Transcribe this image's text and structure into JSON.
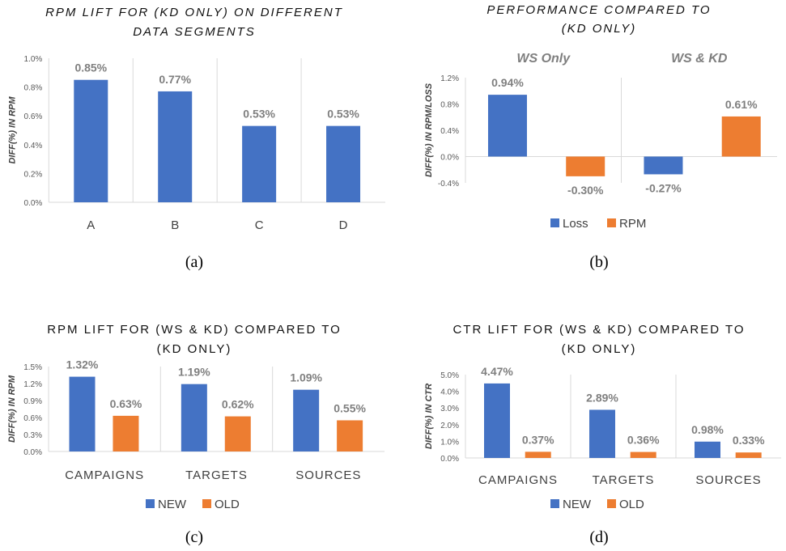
{
  "colors": {
    "blue": "#4472c4",
    "orange": "#ed7d31",
    "grid": "#d9d9d9"
  },
  "chart_data": [
    {
      "type": "bar",
      "caption": "(a)",
      "title": [
        "RPM LIFT FOR (KD ONLY) ON DIFFERENT",
        "DATA SEGMENTS"
      ],
      "ylabel": "DIFF(%) IN RPM",
      "categories": [
        "A",
        "B",
        "C",
        "D"
      ],
      "series": [
        {
          "values": [
            0.85,
            0.77,
            0.53,
            0.53
          ],
          "labels": [
            "0.85%",
            "0.77%",
            "0.53%",
            "0.53%"
          ],
          "color": "#4472c4"
        }
      ],
      "ylim": [
        0,
        1.0
      ],
      "yticks": [
        "0.0%",
        "0.2%",
        "0.4%",
        "0.6%",
        "0.8%",
        "1.0%"
      ],
      "legend": "none"
    },
    {
      "type": "bar",
      "caption": "(b)",
      "title": [
        "PERFORMANCE  COMPARED TO",
        "(KD ONLY)"
      ],
      "ylabel": "DIFF(%) IN RPM/LOSS",
      "categories": [
        "WS Only",
        "WS & KD"
      ],
      "category_position": "top",
      "series": [
        {
          "name": "Loss",
          "values": [
            0.94,
            -0.27
          ],
          "labels": [
            "0.94%",
            "-0.27%"
          ],
          "color": "#4472c4"
        },
        {
          "name": "RPM",
          "values": [
            -0.3,
            0.61
          ],
          "labels": [
            "-0.30%",
            "0.61%"
          ],
          "color": "#ed7d31"
        }
      ],
      "ylim": [
        -0.4,
        1.2
      ],
      "yticks": [
        "-0.4%",
        "0.0%",
        "0.4%",
        "0.8%",
        "1.2%"
      ],
      "legend": "bottom"
    },
    {
      "type": "bar",
      "caption": "(c)",
      "title": [
        "RPM LIFT FOR (WS & KD) COMPARED TO",
        "(KD ONLY)"
      ],
      "ylabel": "DIFF(%) IN RPM",
      "categories": [
        "CAMPAIGNS",
        "TARGETS",
        "SOURCES"
      ],
      "series": [
        {
          "name": "NEW",
          "values": [
            1.32,
            1.19,
            1.09
          ],
          "labels": [
            "1.32%",
            "1.19%",
            "1.09%"
          ],
          "color": "#4472c4"
        },
        {
          "name": "OLD",
          "values": [
            0.63,
            0.62,
            0.55
          ],
          "labels": [
            "0.63%",
            "0.62%",
            "0.55%"
          ],
          "color": "#ed7d31"
        }
      ],
      "ylim": [
        0,
        1.5
      ],
      "yticks": [
        "0.0%",
        "0.3%",
        "0.6%",
        "0.9%",
        "1.2%",
        "1.5%"
      ],
      "legend": "bottom"
    },
    {
      "type": "bar",
      "caption": "(d)",
      "title": [
        "CTR LIFT FOR (WS & KD) COMPARED TO",
        "(KD ONLY)"
      ],
      "ylabel": "DIFF(%) IN CTR",
      "categories": [
        "CAMPAIGNS",
        "TARGETS",
        "SOURCES"
      ],
      "series": [
        {
          "name": "NEW",
          "values": [
            4.47,
            2.89,
            0.98
          ],
          "labels": [
            "4.47%",
            "2.89%",
            "0.98%"
          ],
          "color": "#4472c4"
        },
        {
          "name": "OLD",
          "values": [
            0.37,
            0.36,
            0.33
          ],
          "labels": [
            "0.37%",
            "0.36%",
            "0.33%"
          ],
          "color": "#ed7d31"
        }
      ],
      "ylim": [
        0,
        5.0
      ],
      "yticks": [
        "0.0%",
        "1.0%",
        "2.0%",
        "3.0%",
        "4.0%",
        "5.0%"
      ],
      "legend": "bottom"
    }
  ]
}
